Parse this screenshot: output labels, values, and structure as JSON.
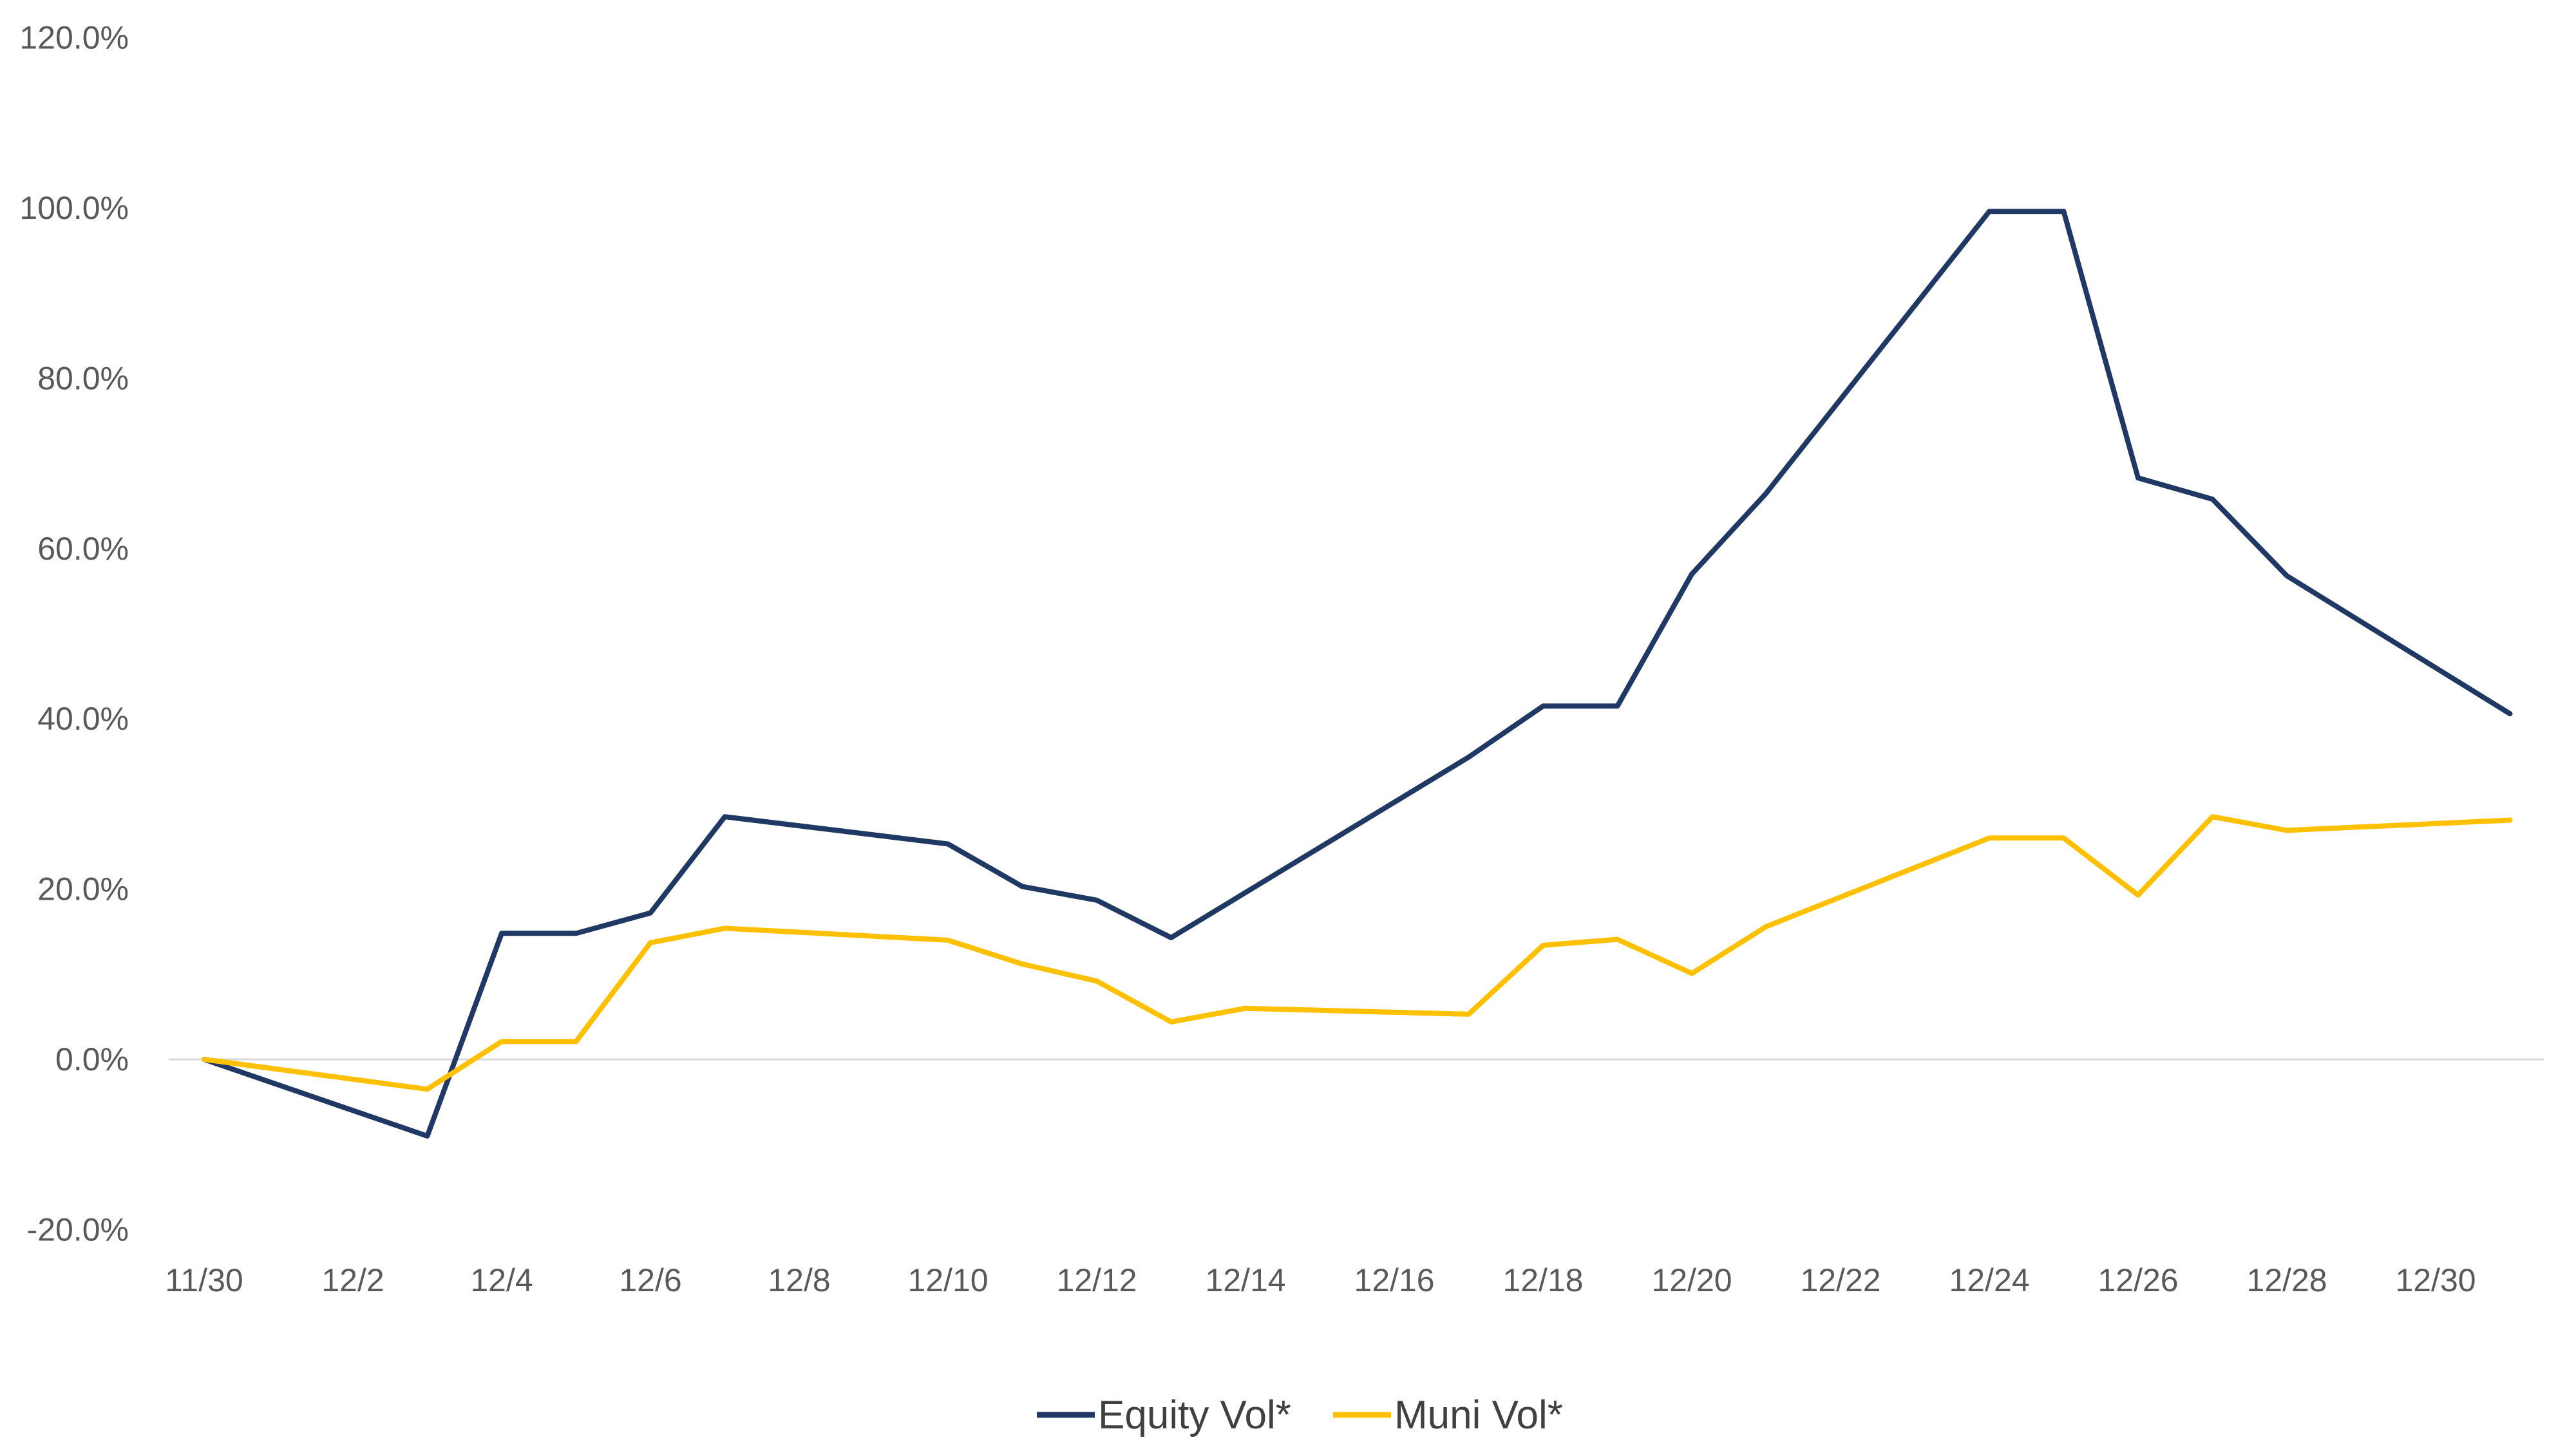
{
  "chart_data": {
    "type": "line",
    "title": "",
    "xlabel": "",
    "ylabel": "",
    "x": [
      "11/30",
      "12/1",
      "12/2",
      "12/3",
      "12/4",
      "12/5",
      "12/6",
      "12/7",
      "12/8",
      "12/9",
      "12/10",
      "12/11",
      "12/12",
      "12/13",
      "12/14",
      "12/15",
      "12/16",
      "12/17",
      "12/18",
      "12/19",
      "12/20",
      "12/21",
      "12/22",
      "12/23",
      "12/24",
      "12/25",
      "12/26",
      "12/27",
      "12/28",
      "12/29",
      "12/30",
      "12/31"
    ],
    "x_tick_labels": [
      "11/30",
      "12/2",
      "12/4",
      "12/6",
      "12/8",
      "12/10",
      "12/12",
      "12/14",
      "12/16",
      "12/18",
      "12/20",
      "12/22",
      "12/24",
      "12/26",
      "12/28",
      "12/30"
    ],
    "y_tick_labels": [
      "-20.0%",
      "0.0%",
      "20.0%",
      "40.0%",
      "60.0%",
      "80.0%",
      "100.0%",
      "120.0%"
    ],
    "ylim": [
      -20,
      120
    ],
    "y_unit": "%",
    "grid": false,
    "legend_position": "bottom-center",
    "series": [
      {
        "name": "Equity Vol*",
        "color": "#1F3864",
        "points": [
          [
            "11/30",
            0.0
          ],
          [
            "12/3",
            -9.0
          ],
          [
            "12/4",
            14.8
          ],
          [
            "12/5",
            14.8
          ],
          [
            "12/6",
            17.2
          ],
          [
            "12/7",
            28.5
          ],
          [
            "12/10",
            25.3
          ],
          [
            "12/11",
            20.3
          ],
          [
            "12/12",
            18.7
          ],
          [
            "12/13",
            14.3
          ],
          [
            "12/17",
            35.5
          ],
          [
            "12/18",
            41.5
          ],
          [
            "12/19",
            41.5
          ],
          [
            "12/20",
            57.0
          ],
          [
            "12/21",
            66.5
          ],
          [
            "12/24",
            99.6
          ],
          [
            "12/25",
            99.6
          ],
          [
            "12/26",
            68.3
          ],
          [
            "12/27",
            65.8
          ],
          [
            "12/28",
            56.8
          ],
          [
            "12/31",
            40.6
          ]
        ]
      },
      {
        "name": "Muni Vol*",
        "color": "#FFC000",
        "points": [
          [
            "11/30",
            0.0
          ],
          [
            "12/3",
            -3.5
          ],
          [
            "12/4",
            2.1
          ],
          [
            "12/5",
            2.1
          ],
          [
            "12/6",
            13.7
          ],
          [
            "12/7",
            15.4
          ],
          [
            "12/10",
            14.0
          ],
          [
            "12/11",
            11.2
          ],
          [
            "12/12",
            9.2
          ],
          [
            "12/13",
            4.4
          ],
          [
            "12/14",
            6.0
          ],
          [
            "12/17",
            5.3
          ],
          [
            "12/18",
            13.4
          ],
          [
            "12/19",
            14.1
          ],
          [
            "12/20",
            10.1
          ],
          [
            "12/21",
            15.6
          ],
          [
            "12/24",
            26.0
          ],
          [
            "12/25",
            26.0
          ],
          [
            "12/26",
            19.3
          ],
          [
            "12/27",
            28.5
          ],
          [
            "12/28",
            26.9
          ],
          [
            "12/31",
            28.1
          ]
        ]
      }
    ]
  }
}
